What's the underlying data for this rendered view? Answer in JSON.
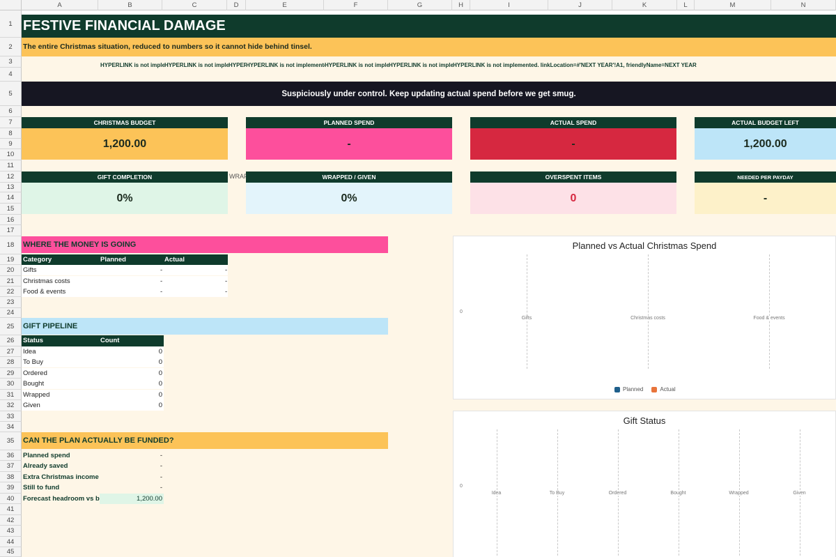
{
  "columns": [
    "A",
    "B",
    "C",
    "D",
    "E",
    "F",
    "G",
    "H",
    "I",
    "J",
    "K",
    "L",
    "M",
    "N"
  ],
  "rows": [
    "1",
    "2",
    "3",
    "4",
    "5",
    "6",
    "7",
    "8",
    "9",
    "10",
    "11",
    "12",
    "13",
    "14",
    "15",
    "16",
    "17",
    "18",
    "19",
    "20",
    "21",
    "22",
    "23",
    "24",
    "25",
    "26",
    "27",
    "28",
    "29",
    "30",
    "31",
    "32",
    "33",
    "34",
    "35",
    "36",
    "37",
    "38",
    "39",
    "40",
    "41",
    "42",
    "43",
    "44",
    "45"
  ],
  "title": "FESTIVE FINANCIAL DAMAGE",
  "subtitle": "The entire Christmas situation, reduced to numbers so it cannot hide behind tinsel.",
  "links": [
    "HYPERLINK is not implemented.",
    "HYPERLINK is not implemented.",
    "HYPERLINK is not implemented.",
    "HYPERLINK is not implemented.",
    "HYPERLINK is not implemented.",
    "HYPERLINK is not implemented.",
    "HYPERLINK is not implemented. linkLocation=#'NEXT YEAR'!A1, friendlyName=NEXT YEAR"
  ],
  "banner": "Suspiciously under control. Keep updating actual spend before we get smug.",
  "kpis": {
    "budget": {
      "label": "CHRISTMAS BUDGET",
      "value": "1,200.00"
    },
    "planned": {
      "label": "PLANNED SPEND",
      "value": "-"
    },
    "actual": {
      "label": "ACTUAL SPEND",
      "value": "-"
    },
    "left": {
      "label": "ACTUAL BUDGET LEFT",
      "value": "1,200.00"
    },
    "completion": {
      "label": "GIFT COMPLETION",
      "value": "0%"
    },
    "wrapped": {
      "label": "WRAPPED / GIVEN",
      "value": "0%"
    },
    "overspent": {
      "label": "OVERSPENT ITEMS",
      "value": "0"
    },
    "payday": {
      "label": "NEEDED PER PAYDAY",
      "value": "-"
    }
  },
  "wrap_overflow": "WRAP",
  "money": {
    "title": "WHERE THE MONEY IS GOING",
    "headers": [
      "Category",
      "Planned",
      "Actual"
    ],
    "rows": [
      [
        "Gifts",
        "-",
        "-"
      ],
      [
        "Christmas costs",
        "-",
        "-"
      ],
      [
        "Food & events",
        "-",
        "-"
      ]
    ]
  },
  "pipeline": {
    "title": "GIFT PIPELINE",
    "headers": [
      "Status",
      "Count"
    ],
    "rows": [
      [
        "Idea",
        "0"
      ],
      [
        "To Buy",
        "0"
      ],
      [
        "Ordered",
        "0"
      ],
      [
        "Bought",
        "0"
      ],
      [
        "Wrapped",
        "0"
      ],
      [
        "Given",
        "0"
      ]
    ]
  },
  "funding": {
    "title": "CAN THE PLAN ACTUALLY BE FUNDED?",
    "rows": [
      [
        "Planned spend",
        "-"
      ],
      [
        "Already saved",
        "-"
      ],
      [
        "Extra Christmas income",
        "-"
      ],
      [
        "Still to fund",
        "-"
      ],
      [
        "Forecast headroom vs buc",
        "1,200.00"
      ]
    ]
  },
  "chart_data": [
    {
      "type": "bar",
      "title": "Planned vs Actual Christmas Spend",
      "categories": [
        "Gifts",
        "Christmas costs",
        "Food & events"
      ],
      "series": [
        {
          "name": "Planned",
          "values": [
            0,
            0,
            0
          ],
          "color": "#1f5f8b"
        },
        {
          "name": "Actual",
          "values": [
            0,
            0,
            0
          ],
          "color": "#e8743b"
        }
      ],
      "ytick": "0"
    },
    {
      "type": "bar",
      "title": "Gift Status",
      "categories": [
        "Idea",
        "To Buy",
        "Ordered",
        "Bought",
        "Wrapped",
        "Given"
      ],
      "series": [
        {
          "values": [
            0,
            0,
            0,
            0,
            0,
            0
          ]
        }
      ],
      "ytick": "0"
    }
  ],
  "colors": {
    "dark_green": "#0f3b2c",
    "gold": "#fcc358",
    "pink": "#fd4f9c",
    "red": "#d62840",
    "light_blue": "#bde5f8",
    "cream": "#fef6e7"
  }
}
